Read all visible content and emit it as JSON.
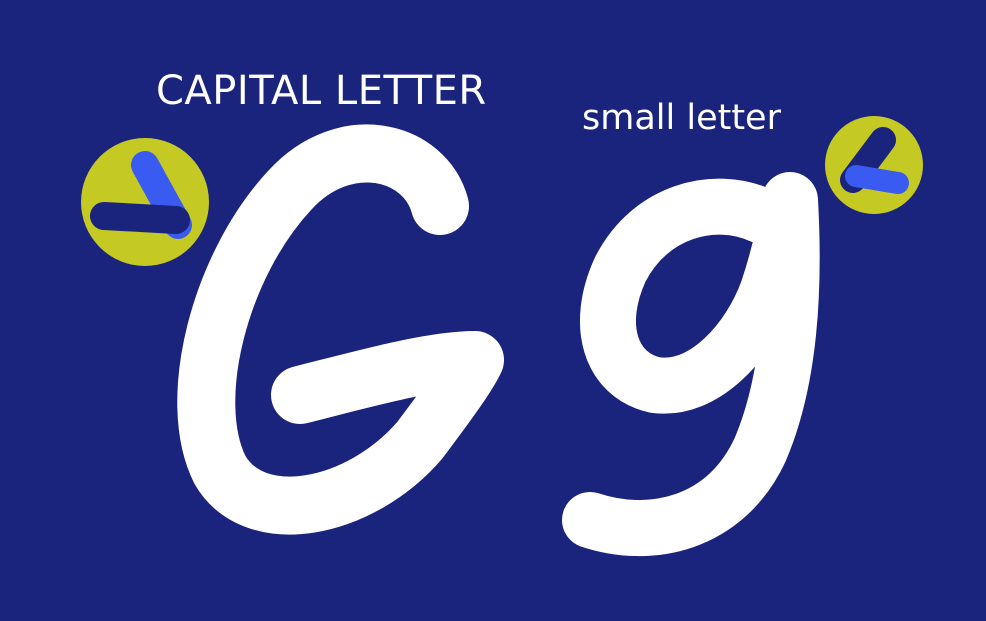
{
  "labels": {
    "capital": "CAPITAL LETTER",
    "small": "small letter"
  },
  "letters": {
    "capital": "G",
    "small": "g"
  },
  "colors": {
    "background": "#1b247c",
    "letter": "#ffffff",
    "badge_circle": "#c4c923",
    "badge_bar_dark": "#1b247c",
    "badge_bar_accent": "#3a5bf2"
  },
  "icons": {
    "capital_badge": "stroke-order-badge-icon",
    "small_badge": "stroke-order-badge-icon"
  }
}
